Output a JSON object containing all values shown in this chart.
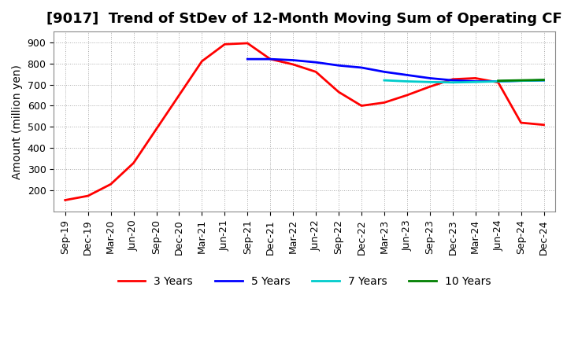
{
  "title": "[9017]  Trend of StDev of 12-Month Moving Sum of Operating CF",
  "ylabel": "Amount (million yen)",
  "background_color": "#ffffff",
  "grid_color": "#aaaaaa",
  "title_fontsize": 13,
  "label_fontsize": 10,
  "tick_fontsize": 9,
  "ylim": [
    100,
    950
  ],
  "yticks": [
    200,
    300,
    400,
    500,
    600,
    700,
    800,
    900
  ],
  "series": {
    "3 Years": {
      "color": "#ff0000",
      "linewidth": 2.0,
      "indices": [
        0,
        1,
        2,
        3,
        4,
        5,
        6,
        7,
        8,
        9,
        10,
        11,
        12,
        13,
        14,
        15,
        16,
        17,
        18,
        19,
        20,
        21
      ],
      "values": [
        155,
        175,
        230,
        330,
        490,
        650,
        810,
        890,
        895,
        820,
        795,
        760,
        665,
        600,
        615,
        650,
        690,
        725,
        730,
        710,
        520,
        510
      ]
    },
    "5 Years": {
      "color": "#0000ff",
      "linewidth": 2.0,
      "indices": [
        8,
        9,
        10,
        11,
        12,
        13,
        14,
        15,
        16,
        17,
        18,
        19,
        20,
        21
      ],
      "values": [
        820,
        820,
        815,
        805,
        790,
        780,
        760,
        745,
        730,
        720,
        715,
        715,
        718,
        720
      ]
    },
    "7 Years": {
      "color": "#00cccc",
      "linewidth": 2.0,
      "indices": [
        14,
        15,
        16,
        17,
        18,
        19,
        20,
        21
      ],
      "values": [
        720,
        715,
        712,
        710,
        712,
        715,
        718,
        720
      ]
    },
    "10 Years": {
      "color": "#008000",
      "linewidth": 2.0,
      "indices": [
        19,
        20,
        21
      ],
      "values": [
        718,
        720,
        722
      ]
    }
  },
  "xtick_labels": [
    "Sep-19",
    "Dec-19",
    "Mar-20",
    "Jun-20",
    "Sep-20",
    "Dec-20",
    "Mar-21",
    "Jun-21",
    "Sep-21",
    "Dec-21",
    "Mar-22",
    "Jun-22",
    "Sep-22",
    "Dec-22",
    "Mar-23",
    "Jun-23",
    "Sep-23",
    "Dec-23",
    "Mar-24",
    "Jun-24",
    "Sep-24",
    "Dec-24"
  ],
  "legend_labels": [
    "3 Years",
    "5 Years",
    "7 Years",
    "10 Years"
  ],
  "legend_colors": [
    "#ff0000",
    "#0000ff",
    "#00cccc",
    "#008000"
  ]
}
